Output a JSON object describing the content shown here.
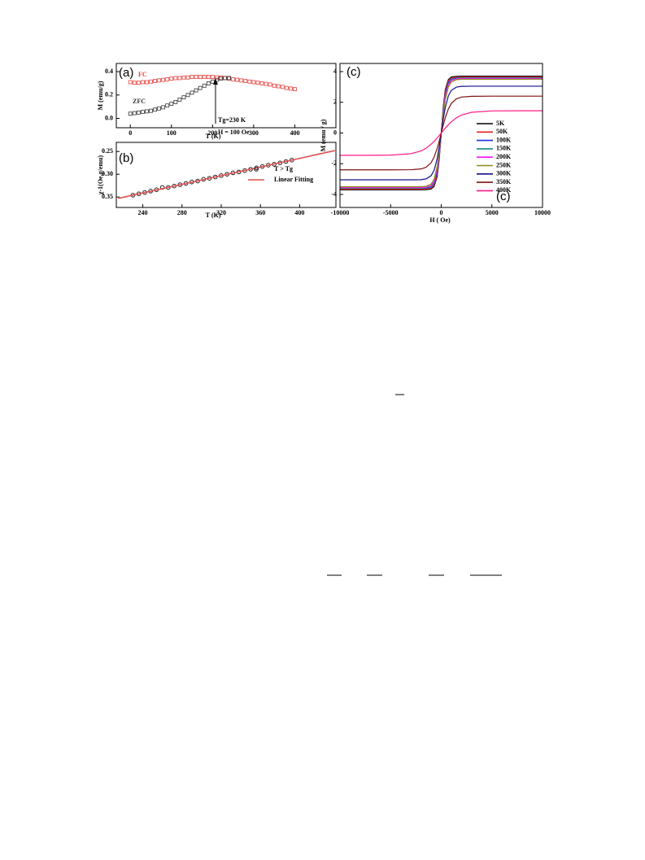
{
  "chart_data": [
    {
      "type": "scatter",
      "xlabel": "T (K)",
      "ylabel": "M (emu/g)",
      "annotations": [
        "(a)",
        "Tg=230 K",
        "H = 100 Oe"
      ],
      "xlim": [
        -34,
        500
      ],
      "xticks": [
        0,
        100,
        200,
        300,
        400
      ],
      "ylim": [
        -0.08,
        0.47
      ],
      "yticks": [
        {
          "value": 0,
          "label": "0.0"
        },
        0.2,
        0.4
      ],
      "series": [
        {
          "name": "FC",
          "color": "#e8403c",
          "marker": "square",
          "x": [
            0,
            10,
            20,
            30,
            40,
            50,
            60,
            70,
            80,
            90,
            100,
            110,
            120,
            130,
            140,
            150,
            160,
            170,
            180,
            190,
            200,
            210,
            220,
            230,
            240,
            250,
            260,
            270,
            280,
            290,
            300,
            310,
            320,
            330,
            340,
            350,
            360,
            370,
            380,
            390,
            400
          ],
          "values": [
            0.31,
            0.305,
            0.305,
            0.31,
            0.31,
            0.315,
            0.32,
            0.325,
            0.33,
            0.335,
            0.34,
            0.345,
            0.345,
            0.35,
            0.35,
            0.355,
            0.355,
            0.355,
            0.355,
            0.355,
            0.355,
            0.35,
            0.35,
            0.345,
            0.34,
            0.335,
            0.33,
            0.325,
            0.32,
            0.315,
            0.31,
            0.305,
            0.3,
            0.295,
            0.29,
            0.28,
            0.275,
            0.27,
            0.26,
            0.255,
            0.25
          ]
        },
        {
          "name": "ZFC",
          "color": "#333333",
          "marker": "square",
          "x": [
            0,
            10,
            20,
            30,
            40,
            50,
            60,
            70,
            80,
            90,
            100,
            110,
            120,
            130,
            140,
            150,
            160,
            170,
            180,
            190,
            200,
            210,
            220,
            230,
            240
          ],
          "values": [
            0.04,
            0.045,
            0.05,
            0.055,
            0.06,
            0.065,
            0.075,
            0.085,
            0.095,
            0.11,
            0.125,
            0.14,
            0.16,
            0.18,
            0.2,
            0.22,
            0.24,
            0.26,
            0.28,
            0.3,
            0.315,
            0.33,
            0.34,
            0.345,
            0.345
          ]
        }
      ]
    },
    {
      "type": "scatter",
      "xlabel": "T (K)",
      "ylabel": "χ-1(Oe.g/emu)",
      "annotations": [
        "(b)"
      ],
      "legend": "right",
      "xlim": [
        213,
        437
      ],
      "xticks": [
        240,
        280,
        320,
        360,
        400
      ],
      "ylim": [
        0.373,
        0.23
      ],
      "yticks": [
        0.25,
        {
          "value": 0.3,
          "label": "0.30"
        },
        0.35
      ],
      "series": [
        {
          "name": "T > Tg",
          "color": "#222222",
          "marker": "circle",
          "x": [
            230,
            236,
            242,
            248,
            254,
            260,
            266,
            272,
            278,
            284,
            290,
            296,
            302,
            308,
            314,
            320,
            326,
            332,
            338,
            344,
            350,
            356,
            362,
            368,
            374,
            380,
            386,
            392
          ],
          "values": [
            0.346,
            0.343,
            0.34,
            0.337,
            0.334,
            0.329,
            0.329,
            0.326,
            0.323,
            0.32,
            0.317,
            0.315,
            0.311,
            0.309,
            0.306,
            0.303,
            0.3,
            0.297,
            0.295,
            0.292,
            0.289,
            0.286,
            0.283,
            0.28,
            0.278,
            0.275,
            0.272,
            0.269
          ]
        },
        {
          "name": "Linear Fitting",
          "color": "#e05050",
          "mode": "line",
          "x": [
            215,
            436
          ],
          "values": [
            0.353,
            0.248
          ]
        }
      ]
    },
    {
      "type": "line",
      "xlabel": "H ( Oe)",
      "ylabel": "M (emu / g)",
      "annotations": [
        "(c)",
        "(c)"
      ],
      "legend": "lower right",
      "xlim": [
        -10000,
        10000
      ],
      "xticks": [
        -10000,
        -5000,
        0,
        5000,
        10000
      ],
      "ylim": [
        -4.85,
        4.53
      ],
      "yticks": [
        -4,
        -2,
        0,
        2,
        4
      ],
      "x": [
        -10000,
        -7500,
        -5000,
        -3000,
        -2000,
        -1500,
        -1000,
        -700,
        -400,
        -200,
        0,
        200,
        400,
        700,
        1000,
        1500,
        2000,
        3000,
        5000,
        7500,
        10000
      ],
      "series": [
        {
          "name": "5K",
          "color": "#000000",
          "values": [
            -3.7,
            -3.7,
            -3.7,
            -3.7,
            -3.7,
            -3.69,
            -3.65,
            -3.48,
            -2.82,
            -1.71,
            0,
            1.71,
            2.82,
            3.48,
            3.65,
            3.69,
            3.7,
            3.7,
            3.7,
            3.7,
            3.7
          ]
        },
        {
          "name": "50K",
          "color": "#e8201c",
          "values": [
            -3.65,
            -3.65,
            -3.65,
            -3.65,
            -3.65,
            -3.64,
            -3.59,
            -3.4,
            -2.7,
            -1.62,
            0,
            1.62,
            2.7,
            3.4,
            3.59,
            3.64,
            3.65,
            3.65,
            3.65,
            3.65,
            3.65
          ]
        },
        {
          "name": "100K",
          "color": "#1c2ce8",
          "values": [
            -3.6,
            -3.6,
            -3.6,
            -3.6,
            -3.6,
            -3.59,
            -3.52,
            -3.29,
            -2.56,
            -1.5,
            0,
            1.5,
            2.56,
            3.29,
            3.52,
            3.59,
            3.6,
            3.6,
            3.6,
            3.6,
            3.6
          ]
        },
        {
          "name": "150K",
          "color": "#108a8a",
          "values": [
            -3.6,
            -3.6,
            -3.6,
            -3.6,
            -3.6,
            -3.58,
            -3.49,
            -3.23,
            -2.46,
            -1.42,
            0,
            1.42,
            2.46,
            3.23,
            3.49,
            3.58,
            3.6,
            3.6,
            3.6,
            3.6,
            3.6
          ]
        },
        {
          "name": "200K",
          "color": "#ff10ff",
          "values": [
            -3.55,
            -3.55,
            -3.55,
            -3.55,
            -3.55,
            -3.53,
            -3.42,
            -3.14,
            -2.36,
            -1.35,
            0,
            1.35,
            2.36,
            3.14,
            3.42,
            3.53,
            3.55,
            3.55,
            3.55,
            3.55,
            3.55
          ]
        },
        {
          "name": "250K",
          "color": "#8a8a10",
          "values": [
            -3.5,
            -3.5,
            -3.5,
            -3.5,
            -3.5,
            -3.47,
            -3.32,
            -2.99,
            -2.17,
            -1.22,
            0,
            1.22,
            2.17,
            2.99,
            3.32,
            3.47,
            3.5,
            3.5,
            3.5,
            3.5,
            3.5
          ]
        },
        {
          "name": "300K",
          "color": "#10108a",
          "values": [
            -3.05,
            -3.05,
            -3.05,
            -3.05,
            -3.04,
            -2.99,
            -2.78,
            -2.42,
            -1.67,
            -0.91,
            0,
            0.91,
            1.67,
            2.42,
            2.78,
            2.99,
            3.04,
            3.05,
            3.05,
            3.05,
            3.05
          ]
        },
        {
          "name": "350K",
          "color": "#801010",
          "values": [
            -2.4,
            -2.4,
            -2.4,
            -2.39,
            -2.34,
            -2.23,
            -1.93,
            -1.56,
            -1.0,
            -0.52,
            0,
            0.52,
            1.0,
            1.56,
            1.93,
            2.23,
            2.34,
            2.39,
            2.4,
            2.4,
            2.4
          ]
        },
        {
          "name": "400K",
          "color": "#ff1888",
          "values": [
            -1.45,
            -1.45,
            -1.44,
            -1.35,
            -1.17,
            -0.99,
            -0.73,
            -0.54,
            -0.32,
            -0.16,
            0,
            0.16,
            0.32,
            0.54,
            0.73,
            0.99,
            1.17,
            1.35,
            1.44,
            1.45,
            1.45
          ]
        }
      ]
    }
  ]
}
